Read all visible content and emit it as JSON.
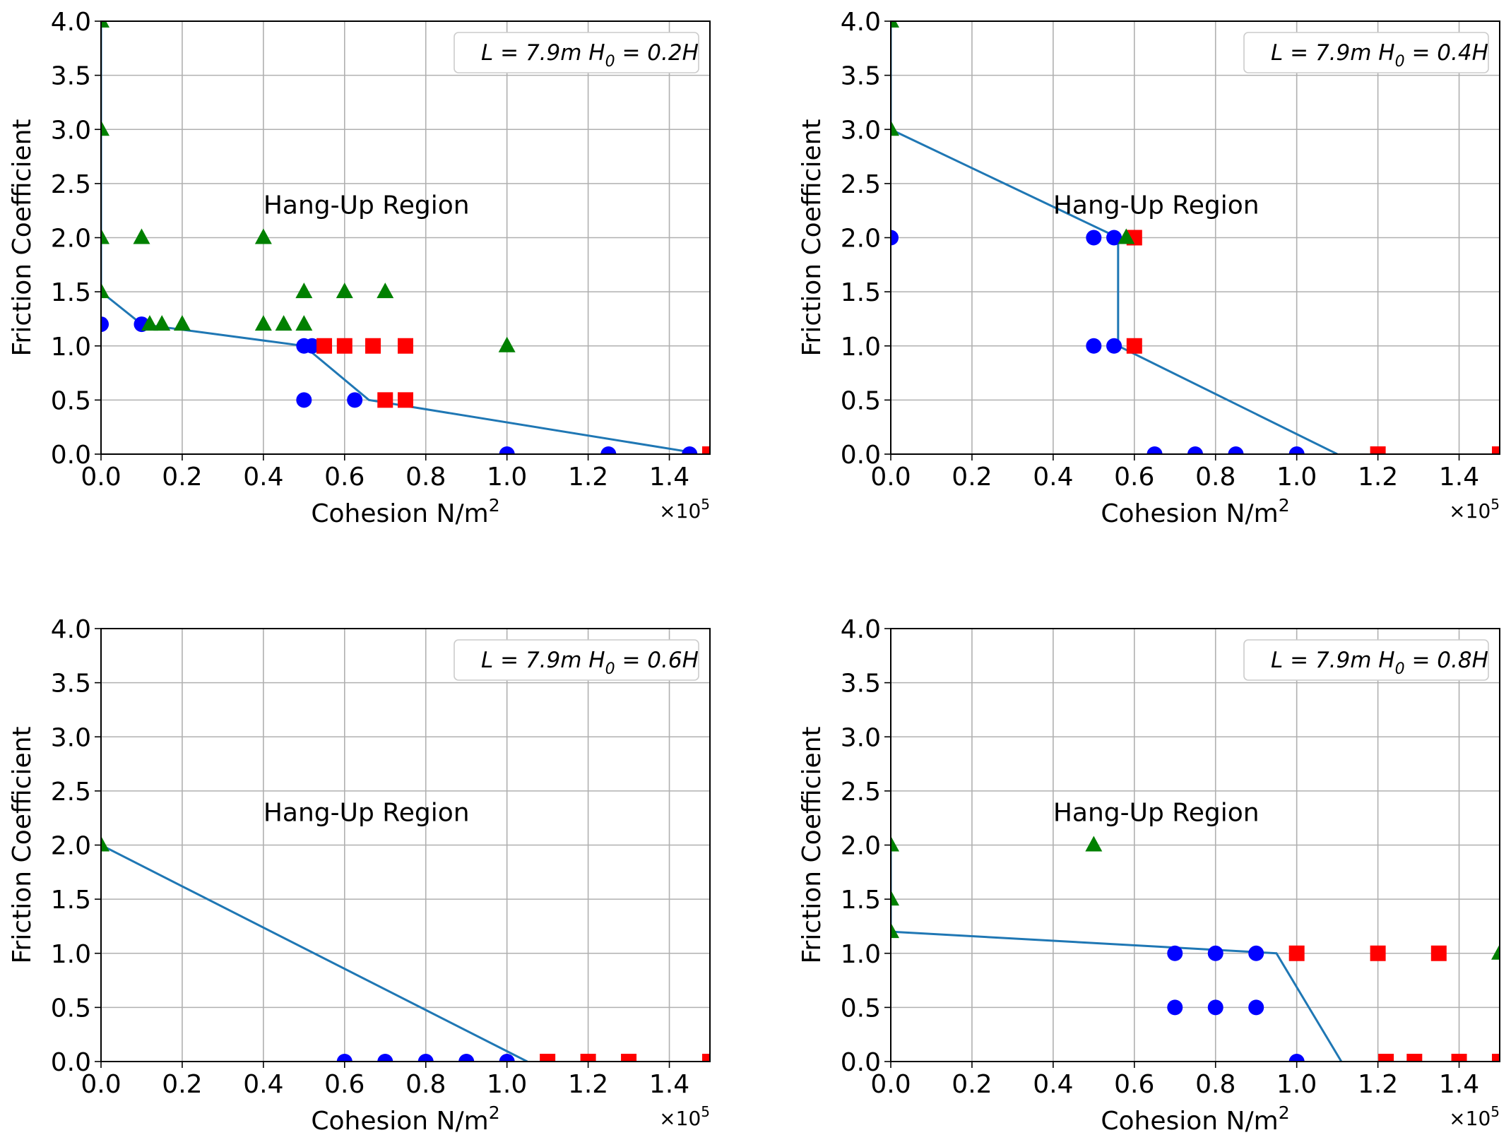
{
  "figure": {
    "axes_style": {
      "line_color": "#1f77b4",
      "circle_color": "#0000ff",
      "square_color": "#ff0000",
      "triangle_color": "#008000",
      "grid_color": "#b0b0b0"
    }
  },
  "chart_data": [
    {
      "type": "scatter",
      "xlabel": "Cohesion N/m",
      "xlabel_sup": "2",
      "ylabel": "Friction Coefficient",
      "x_multiplier_base": "×10",
      "x_multiplier_exp": "5",
      "xlim": [
        0,
        1.5
      ],
      "ylim": [
        0,
        4
      ],
      "grid": true,
      "legend_placement": "top-right",
      "legend_prefix": "L = 7.9m  H",
      "legend_sub": "0",
      "legend_suffix": " = 0.2H",
      "annotation": "Hang-Up Region",
      "annotation_xy": [
        0.4,
        2.3
      ],
      "x_ticks": [
        "0.0",
        "0.2",
        "0.4",
        "0.6",
        "0.8",
        "1.0",
        "1.2",
        "1.4"
      ],
      "y_ticks": [
        "0.0",
        "0.5",
        "1.0",
        "1.5",
        "2.0",
        "2.5",
        "3.0",
        "3.5",
        "4.0"
      ],
      "boundary_line": {
        "x": [
          0,
          0,
          0.1,
          0.5,
          0.66,
          1.45
        ],
        "y": [
          4.0,
          1.5,
          1.2,
          1.0,
          0.5,
          0.02
        ]
      },
      "circles": {
        "x": [
          0,
          0.1,
          0.5,
          0.52,
          0.5,
          0.625,
          1.0,
          1.25,
          1.45
        ],
        "y": [
          1.2,
          1.2,
          1.0,
          1.0,
          0.5,
          0.5,
          0.0,
          0.0,
          0.0
        ]
      },
      "squares": {
        "x": [
          0.55,
          0.6,
          0.67,
          0.75,
          0.7,
          0.75,
          1.5
        ],
        "y": [
          1.0,
          1.0,
          1.0,
          1.0,
          0.5,
          0.5,
          0.0
        ]
      },
      "triangles": {
        "x": [
          0,
          0,
          0,
          0,
          0.1,
          0.4,
          0.12,
          0.15,
          0.2,
          0.4,
          0.45,
          0.5,
          0.5,
          0.6,
          0.7,
          1.0
        ],
        "y": [
          4.0,
          3.0,
          2.0,
          1.5,
          2.0,
          2.0,
          1.2,
          1.2,
          1.2,
          1.2,
          1.2,
          1.2,
          1.5,
          1.5,
          1.5,
          1.0
        ]
      }
    },
    {
      "type": "scatter",
      "xlabel": "Cohesion N/m",
      "xlabel_sup": "2",
      "ylabel": "Friction Coefficient",
      "x_multiplier_base": "×10",
      "x_multiplier_exp": "5",
      "xlim": [
        0,
        1.5
      ],
      "ylim": [
        0,
        4
      ],
      "grid": true,
      "legend_placement": "top-right",
      "legend_prefix": "L = 7.9m  H",
      "legend_sub": "0",
      "legend_suffix": " = 0.4H",
      "annotation": "Hang-Up Region",
      "annotation_xy": [
        0.4,
        2.3
      ],
      "x_ticks": [
        "0.0",
        "0.2",
        "0.4",
        "0.6",
        "0.8",
        "1.0",
        "1.2",
        "1.4"
      ],
      "y_ticks": [
        "0.0",
        "0.5",
        "1.0",
        "1.5",
        "2.0",
        "2.5",
        "3.0",
        "3.5",
        "4.0"
      ],
      "boundary_line": {
        "x": [
          0,
          0,
          0.56,
          0.56,
          0.56,
          1.1
        ],
        "y": [
          4.0,
          3.0,
          2.0,
          1.0,
          1.0,
          0.0
        ]
      },
      "circles": {
        "x": [
          0,
          0.5,
          0.55,
          0.5,
          0.55,
          0.65,
          0.75,
          0.85,
          1.0
        ],
        "y": [
          2.0,
          2.0,
          2.0,
          1.0,
          1.0,
          0.0,
          0.0,
          0.0,
          0.0
        ]
      },
      "squares": {
        "x": [
          0.6,
          0.6,
          1.2,
          1.5
        ],
        "y": [
          2.0,
          1.0,
          0.0,
          0.0
        ]
      },
      "triangles": {
        "x": [
          0,
          0,
          0.58
        ],
        "y": [
          4.0,
          3.0,
          2.0
        ]
      }
    },
    {
      "type": "scatter",
      "xlabel": "Cohesion N/m",
      "xlabel_sup": "2",
      "ylabel": "Friction Coefficient",
      "x_multiplier_base": "×10",
      "x_multiplier_exp": "5",
      "xlim": [
        0,
        1.5
      ],
      "ylim": [
        0,
        4
      ],
      "grid": true,
      "legend_placement": "top-right",
      "legend_prefix": "L = 7.9m  H",
      "legend_sub": "0",
      "legend_suffix": " = 0.6H",
      "annotation": "Hang-Up Region",
      "annotation_xy": [
        0.4,
        2.3
      ],
      "x_ticks": [
        "0.0",
        "0.2",
        "0.4",
        "0.6",
        "0.8",
        "1.0",
        "1.2",
        "1.4"
      ],
      "y_ticks": [
        "0.0",
        "0.5",
        "1.0",
        "1.5",
        "2.0",
        "2.5",
        "3.0",
        "3.5",
        "4.0"
      ],
      "boundary_line": {
        "x": [
          0,
          1.05
        ],
        "y": [
          2.0,
          0.0
        ]
      },
      "circles": {
        "x": [
          0.6,
          0.7,
          0.8,
          0.9,
          1.0
        ],
        "y": [
          0,
          0,
          0,
          0,
          0
        ]
      },
      "squares": {
        "x": [
          1.1,
          1.2,
          1.3,
          1.5
        ],
        "y": [
          0,
          0,
          0,
          0
        ]
      },
      "triangles": {
        "x": [
          0
        ],
        "y": [
          2.0
        ]
      }
    },
    {
      "type": "scatter",
      "xlabel": "Cohesion N/m",
      "xlabel_sup": "2",
      "ylabel": "Friction Coefficient",
      "x_multiplier_base": "×10",
      "x_multiplier_exp": "5",
      "xlim": [
        0,
        1.5
      ],
      "ylim": [
        0,
        4
      ],
      "grid": true,
      "legend_placement": "top-right",
      "legend_prefix": "L = 7.9m  H",
      "legend_sub": "0",
      "legend_suffix": " = 0.8H",
      "annotation": "Hang-Up Region",
      "annotation_xy": [
        0.4,
        2.3
      ],
      "x_ticks": [
        "0.0",
        "0.2",
        "0.4",
        "0.6",
        "0.8",
        "1.0",
        "1.2",
        "1.4"
      ],
      "y_ticks": [
        "0.0",
        "0.5",
        "1.0",
        "1.5",
        "2.0",
        "2.5",
        "3.0",
        "3.5",
        "4.0"
      ],
      "boundary_line": {
        "x": [
          0,
          0,
          0.95,
          1.11
        ],
        "y": [
          2.0,
          1.2,
          1.0,
          0.0
        ]
      },
      "circles": {
        "x": [
          0.7,
          0.8,
          0.9,
          0.7,
          0.8,
          0.9,
          1.0
        ],
        "y": [
          1.0,
          1.0,
          1.0,
          0.5,
          0.5,
          0.5,
          0.0
        ]
      },
      "squares": {
        "x": [
          1.0,
          1.2,
          1.35,
          1.22,
          1.29,
          1.4,
          1.5
        ],
        "y": [
          1.0,
          1.0,
          1.0,
          0.0,
          0.0,
          0.0,
          0.0
        ]
      },
      "triangles": {
        "x": [
          0,
          0,
          0,
          0.5,
          1.5
        ],
        "y": [
          2.0,
          1.5,
          1.2,
          2.0,
          1.0
        ]
      }
    }
  ]
}
